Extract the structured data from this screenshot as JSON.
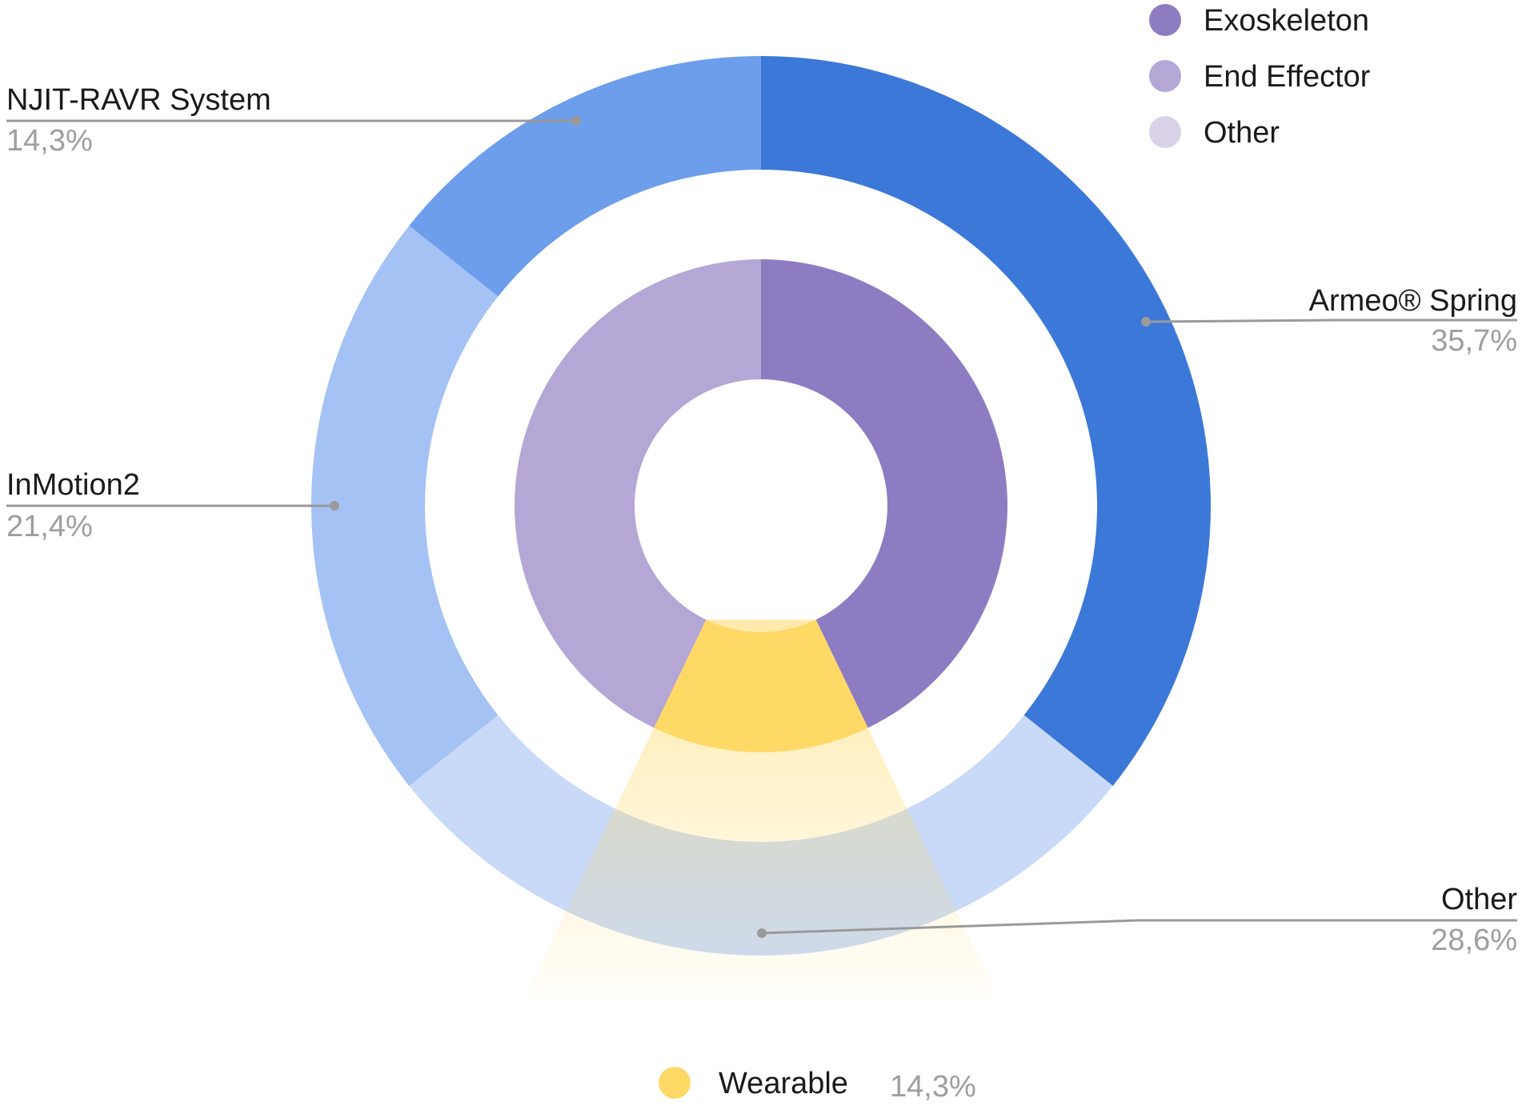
{
  "chart_data": {
    "type": "pie",
    "variant": "nested-donut",
    "outer_ring": [
      {
        "name": "Armeo® Spring",
        "value": 35.7,
        "label": "35,7%",
        "color": "#3c78d8"
      },
      {
        "name": "Other",
        "value": 28.6,
        "label": "28,6%",
        "color": "#c9daf8"
      },
      {
        "name": "InMotion2",
        "value": 21.4,
        "label": "21,4%",
        "color": "#a4c2f4"
      },
      {
        "name": "NJIT-RAVR System",
        "value": 14.3,
        "label": "14,3%",
        "color": "#6d9eeb"
      }
    ],
    "inner_ring": [
      {
        "name": "Exoskeleton",
        "value": 42.9,
        "color": "#8e7cc3"
      },
      {
        "name": "Wearable",
        "value": 14.3,
        "color": "#ffd966"
      },
      {
        "name": "End Effector",
        "value": 42.9,
        "color": "#b4a7d6"
      }
    ],
    "legend": [
      {
        "name": "Exoskeleton",
        "color": "#8e7cc3"
      },
      {
        "name": "End Effector",
        "color": "#b4a7d6"
      },
      {
        "name": "Other",
        "color": "#d9d2e9"
      }
    ],
    "highlight": {
      "name": "Wearable",
      "label": "14,3%",
      "color": "#ffd966"
    }
  }
}
